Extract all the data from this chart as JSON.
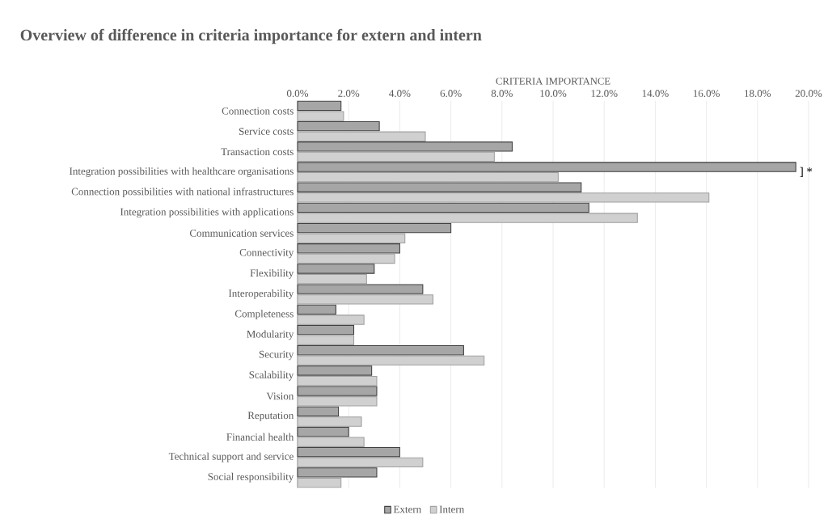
{
  "chart_data": {
    "type": "bar",
    "orientation": "horizontal",
    "title": "Overview of difference in criteria importance for extern and intern",
    "xlabel": "CRITERIA IMPORTANCE",
    "categories": [
      "Connection costs",
      "Service costs",
      "Transaction costs",
      "Integration possibilities with healthcare organisations",
      "Connection possibilities with national infrastructures",
      "Integration possibilities with applications",
      "Communication services",
      "Connectivity",
      "Flexibility",
      "Interoperability",
      "Completeness",
      "Modularity",
      "Security",
      "Scalability",
      "Vision",
      "Reputation",
      "Financial health",
      "Technical support and service",
      "Social responsibility"
    ],
    "series": [
      {
        "name": "Extern",
        "color": "#a6a6a6",
        "values": [
          1.7,
          3.2,
          8.4,
          19.5,
          11.1,
          11.4,
          6.0,
          4.0,
          3.0,
          4.9,
          1.5,
          2.2,
          6.5,
          2.9,
          3.1,
          1.6,
          2.0,
          4.0,
          3.1
        ]
      },
      {
        "name": "Intern",
        "color": "#d0d0d0",
        "values": [
          1.8,
          5.0,
          7.7,
          10.2,
          16.1,
          13.3,
          4.2,
          3.8,
          2.7,
          5.3,
          2.6,
          2.2,
          7.3,
          3.1,
          3.1,
          2.5,
          2.6,
          4.9,
          1.7
        ]
      }
    ],
    "xlim": [
      0,
      20
    ],
    "xticks": [
      {
        "value": 0,
        "label": "0.0%"
      },
      {
        "value": 2,
        "label": "2.0%"
      },
      {
        "value": 4,
        "label": "4.0%"
      },
      {
        "value": 6,
        "label": "6.0%"
      },
      {
        "value": 8,
        "label": "8.0%"
      },
      {
        "value": 10,
        "label": "10.0%"
      },
      {
        "value": 12,
        "label": "12.0%"
      },
      {
        "value": 14,
        "label": "14.0%"
      },
      {
        "value": 16,
        "label": "16.0%"
      },
      {
        "value": 18,
        "label": "18.0%"
      },
      {
        "value": 20,
        "label": "20.0%"
      }
    ],
    "annotations": [
      {
        "text": "] *",
        "x": 19.5,
        "y": "Integration possibilities with healthcare organisations"
      }
    ],
    "grid": "x",
    "legend": "bottom"
  }
}
